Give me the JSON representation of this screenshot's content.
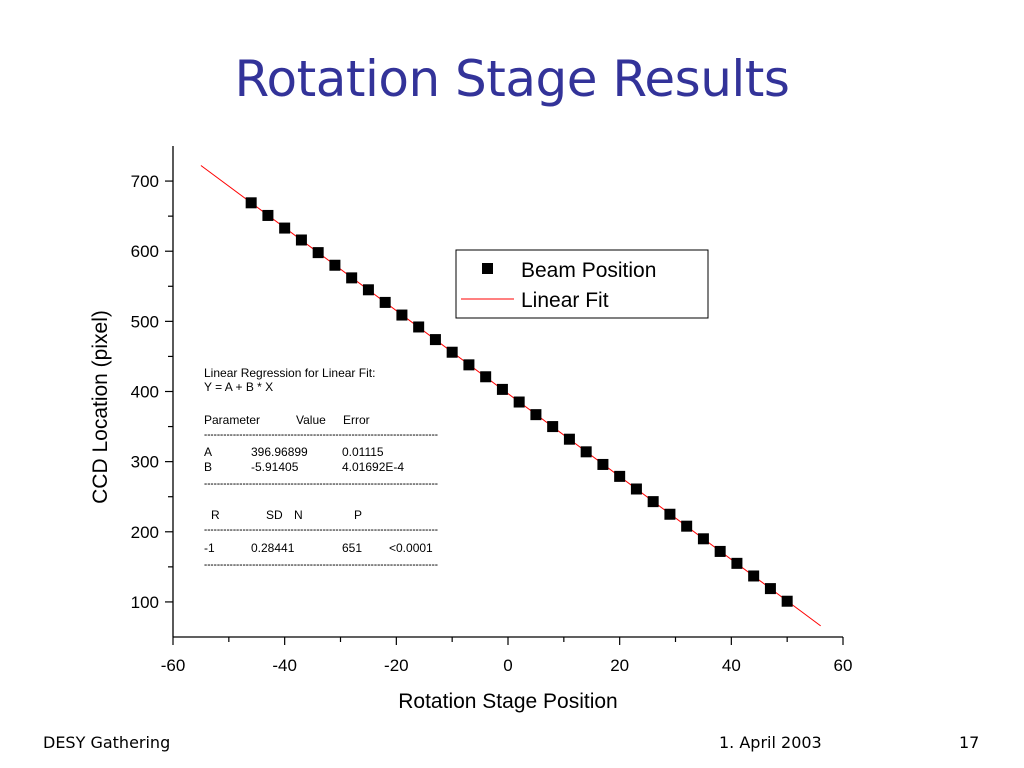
{
  "slide": {
    "title": "Rotation Stage Results",
    "footer_left": "DESY Gathering",
    "footer_center": "1. April 2003",
    "page_number": "17"
  },
  "chart_data": {
    "type": "scatter",
    "xlabel": "Rotation Stage Position",
    "ylabel": "CCD Location (pixel)",
    "xlim": [
      -60,
      60
    ],
    "ylim": [
      50,
      750
    ],
    "x_ticks": [
      "-60",
      "-40",
      "-20",
      "0",
      "20",
      "40",
      "60"
    ],
    "y_ticks": [
      "100",
      "200",
      "300",
      "400",
      "500",
      "600",
      "700"
    ],
    "legend_position": "top-right",
    "grid": false,
    "series": [
      {
        "name": "Beam Position",
        "marker": "square",
        "color": "#000000",
        "x": [
          -46,
          -43,
          -40,
          -37,
          -34,
          -31,
          -28,
          -25,
          -22,
          -19,
          -16,
          -13,
          -10,
          -7,
          -4,
          -1,
          2,
          5,
          8,
          11,
          14,
          17,
          20,
          23,
          26,
          29,
          32,
          35,
          38,
          41,
          44,
          47,
          50
        ],
        "y": [
          669,
          651,
          633,
          616,
          598,
          580,
          562,
          545,
          527,
          509,
          492,
          474,
          456,
          438,
          421,
          403,
          385,
          367,
          350,
          332,
          314,
          296,
          279,
          261,
          243,
          225,
          208,
          190,
          172,
          155,
          137,
          119,
          101
        ]
      },
      {
        "name": "Linear Fit",
        "type": "line",
        "color": "#ff0000",
        "x": [
          -55,
          56
        ],
        "y": [
          722.2,
          65.9
        ]
      }
    ],
    "regression_table": {
      "title_line1": "Linear Regression for Linear Fit:",
      "title_line2": "Y = A + B * X",
      "param_header": "Parameter",
      "value_header": "Value",
      "error_header": "Error",
      "rows": [
        {
          "param": "A",
          "value": "396.96899",
          "error": "0.01115"
        },
        {
          "param": "B",
          "value": "-5.91405",
          "error": "4.01692E-4"
        }
      ],
      "r_header": "R",
      "sd_header": "SD",
      "n_header": "N",
      "p_header": "P",
      "r": "-1",
      "sd": "0.28441",
      "n": "651",
      "p": "<0.0001",
      "rule": "-------------------------------------------------------------------------"
    }
  }
}
